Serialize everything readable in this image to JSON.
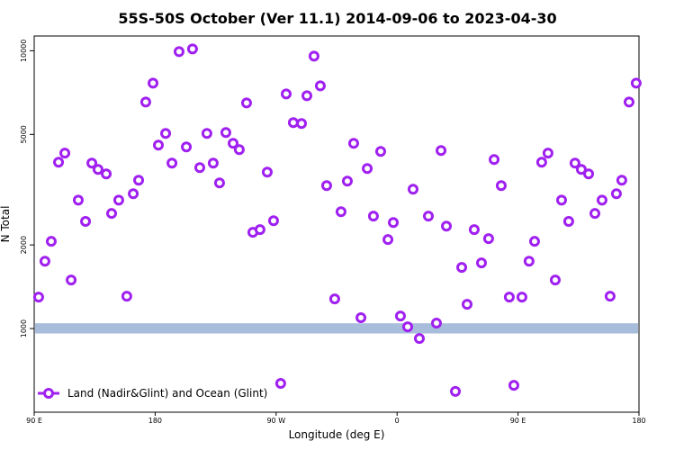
{
  "chart_data": {
    "type": "scatter",
    "title": "55S-50S October (Ver 11.1)   2014-09-06 to 2023-04-30",
    "xlabel": "Longitude (deg E)",
    "ylabel": "N Total",
    "log_y": true,
    "legend": "lower left",
    "xlim": [
      90,
      540
    ],
    "xticks": [
      {
        "value": 90,
        "label": "90 E"
      },
      180,
      {
        "value": 270,
        "label": "90 W"
      },
      {
        "value": 360,
        "label": "0"
      },
      {
        "value": 450,
        "label": "90 E"
      },
      {
        "value": 540,
        "label": "180"
      }
    ],
    "ylim": [
      500,
      11300
    ],
    "yticks": [
      1000,
      2000,
      5000,
      10000
    ],
    "band": {
      "color": "#a8bddb",
      "range": [
        960,
        1045
      ]
    },
    "series": [
      {
        "name": "Land (Nadir&Glint) and Ocean (Glint)",
        "color": "#a020f0",
        "x": [
          93.3,
          98.0,
          102.7,
          108.1,
          112.8,
          117.5,
          122.8,
          128.2,
          132.9,
          137.5,
          143.6,
          147.6,
          152.9,
          158.9,
          163.7,
          167.7,
          173.0,
          178.4,
          182.4,
          187.8,
          192.5,
          197.8,
          203.2,
          207.8,
          213.2,
          218.5,
          223.2,
          227.9,
          232.6,
          238.0,
          242.6,
          248.0,
          252.7,
          258.0,
          263.4,
          268.1,
          273.4,
          277.5,
          282.8,
          288.9,
          292.9,
          298.2,
          302.9,
          307.6,
          313.6,
          318.3,
          323.0,
          327.7,
          333.1,
          337.8,
          342.4,
          347.8,
          353.2,
          357.2,
          362.5,
          367.9,
          371.9,
          376.6,
          383.3,
          389.3,
          392.7,
          396.7,
          403.4,
          408.1,
          412.1,
          417.4,
          422.8,
          428.1,
          432.2,
          437.5,
          443.5,
          446.9,
          452.9,
          458.2,
          462.3,
          467.6,
          472.3,
          477.7,
          482.4,
          487.7,
          492.4,
          497.1,
          502.5,
          507.2,
          512.5,
          518.5,
          523.2,
          527.2,
          532.6,
          537.9
        ],
        "values": [
          1298,
          1748,
          2060,
          3970,
          4280,
          1496,
          2900,
          2430,
          3940,
          3740,
          3603,
          2596,
          2900,
          1308,
          3058,
          3420,
          6539,
          7648,
          4574,
          5040,
          3940,
          9930,
          4506,
          10150,
          3796,
          5040,
          3940,
          3344,
          5077,
          4642,
          4406,
          6491,
          2220,
          2270,
          3658,
          2445,
          635,
          6993,
          5510,
          5469,
          6889,
          9563,
          7478,
          3270,
          1279,
          2634,
          3394,
          4642,
          1094,
          3767,
          2539,
          4341,
          2091,
          2409,
          1110,
          1015,
          3174,
          921,
          2539,
          1046,
          4373,
          2338,
          594,
          1660,
          1223,
          2270,
          1723,
          2107,
          4058,
          3270,
          1298,
          625,
          1298,
          1748,
          2060,
          3970,
          4280,
          1496,
          2900,
          2430,
          3940,
          3740,
          3603,
          2596,
          2900,
          1308,
          3058,
          3420,
          6539,
          7648
        ]
      }
    ]
  }
}
